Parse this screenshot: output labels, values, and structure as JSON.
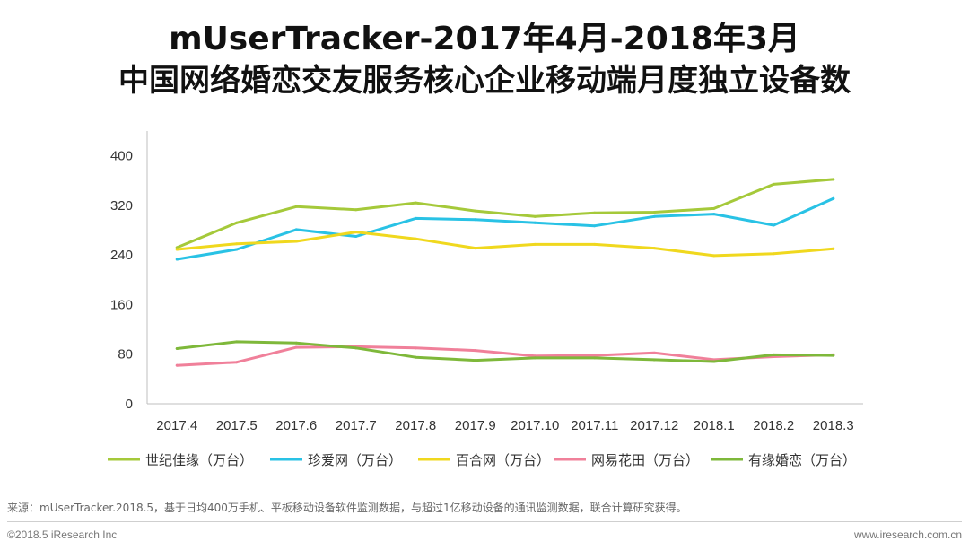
{
  "header": {
    "title_line1": "mUserTracker-2017年4月-2018年3月",
    "title_line2": "中国网络婚恋交友服务核心企业移动端月度独立设备数"
  },
  "chart_data": {
    "type": "line",
    "categories": [
      "2017.4",
      "2017.5",
      "2017.6",
      "2017.7",
      "2017.8",
      "2017.9",
      "2017.10",
      "2017.11",
      "2017.12",
      "2018.1",
      "2018.2",
      "2018.3"
    ],
    "ylim": [
      0,
      440
    ],
    "yticks": [
      0,
      80,
      160,
      240,
      320,
      400
    ],
    "grid": false,
    "legend_position": "bottom",
    "series": [
      {
        "name": "世纪佳缘（万台）",
        "color": "#a5c93a",
        "values": [
          252,
          292,
          318,
          313,
          324,
          311,
          302,
          308,
          309,
          315,
          354,
          362
        ]
      },
      {
        "name": "珍爱网（万台）",
        "color": "#29c2e5",
        "values": [
          233,
          249,
          281,
          270,
          299,
          297,
          292,
          287,
          302,
          306,
          288,
          331
        ]
      },
      {
        "name": "百合网（万台）",
        "color": "#f0d81e",
        "values": [
          249,
          258,
          262,
          277,
          266,
          251,
          257,
          257,
          251,
          239,
          242,
          250
        ]
      },
      {
        "name": "网易花田（万台）",
        "color": "#f0809a",
        "values": [
          62,
          67,
          91,
          92,
          90,
          86,
          77,
          78,
          82,
          71,
          76,
          79
        ]
      },
      {
        "name": "有缘婚恋（万台）",
        "color": "#7eb83a",
        "values": [
          89,
          100,
          98,
          90,
          75,
          70,
          74,
          74,
          71,
          68,
          79,
          78
        ]
      }
    ]
  },
  "source_note": "来源：mUserTracker.2018.5，基于日均400万手机、平板移动设备软件监测数据，与超过1亿移动设备的通讯监测数据，联合计算研究获得。",
  "footer": {
    "copyright": "©2018.5 iResearch Inc",
    "website": "www.iresearch.com.cn"
  }
}
